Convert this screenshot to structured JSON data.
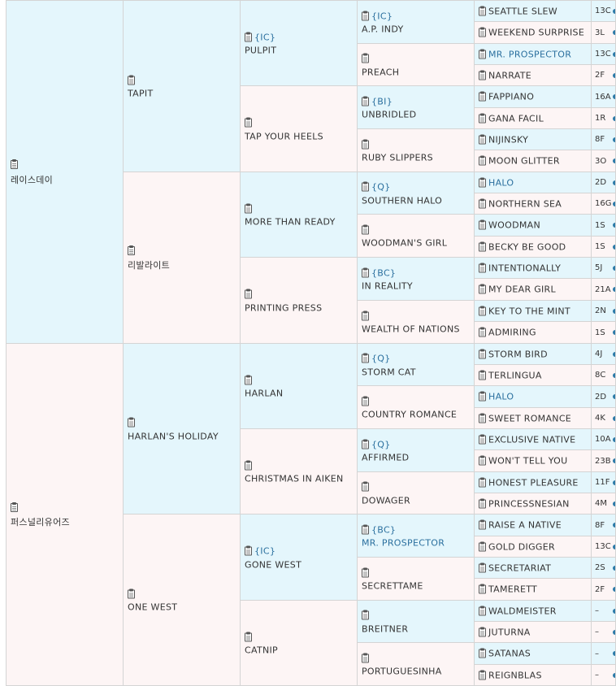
{
  "generation_1": [
    {
      "name": "레이스데이",
      "sex": "male"
    },
    {
      "name": "퍼스널리유어즈",
      "sex": "female"
    }
  ],
  "generation_2": [
    {
      "name": "TAPIT",
      "sex": "male"
    },
    {
      "name": "리발라이트",
      "sex": "female"
    },
    {
      "name": "HARLAN'S HOLIDAY",
      "sex": "male"
    },
    {
      "name": "ONE WEST",
      "sex": "female"
    }
  ],
  "generation_3": [
    {
      "name": "PULPIT",
      "sex": "male",
      "tag": "{IC}"
    },
    {
      "name": "TAP YOUR HEELS",
      "sex": "female",
      "tag": ""
    },
    {
      "name": "MORE THAN READY",
      "sex": "male",
      "tag": ""
    },
    {
      "name": "PRINTING PRESS",
      "sex": "female",
      "tag": ""
    },
    {
      "name": "HARLAN",
      "sex": "male",
      "tag": ""
    },
    {
      "name": "CHRISTMAS IN AIKEN",
      "sex": "female",
      "tag": ""
    },
    {
      "name": "GONE WEST",
      "sex": "male",
      "tag": "{IC}"
    },
    {
      "name": "CATNIP",
      "sex": "female",
      "tag": ""
    }
  ],
  "generation_4": [
    {
      "name": "A.P. INDY",
      "sex": "male",
      "tag": "{IC}",
      "link": false
    },
    {
      "name": "PREACH",
      "sex": "female",
      "tag": "",
      "link": false
    },
    {
      "name": "UNBRIDLED",
      "sex": "male",
      "tag": "{BI}",
      "link": false
    },
    {
      "name": "RUBY SLIPPERS",
      "sex": "female",
      "tag": "",
      "link": false
    },
    {
      "name": "SOUTHERN HALO",
      "sex": "male",
      "tag": "{Q}",
      "link": false
    },
    {
      "name": "WOODMAN'S GIRL",
      "sex": "female",
      "tag": "",
      "link": false
    },
    {
      "name": "IN REALITY",
      "sex": "male",
      "tag": "{BC}",
      "link": false
    },
    {
      "name": "WEALTH OF NATIONS",
      "sex": "female",
      "tag": "",
      "link": false
    },
    {
      "name": "STORM CAT",
      "sex": "male",
      "tag": "{Q}",
      "link": false
    },
    {
      "name": "COUNTRY ROMANCE",
      "sex": "female",
      "tag": "",
      "link": false
    },
    {
      "name": "AFFIRMED",
      "sex": "male",
      "tag": "{Q}",
      "link": false
    },
    {
      "name": "DOWAGER",
      "sex": "female",
      "tag": "",
      "link": false
    },
    {
      "name": "MR. PROSPECTOR",
      "sex": "male",
      "tag": "{BC}",
      "link": true
    },
    {
      "name": "SECRETTAME",
      "sex": "female",
      "tag": "",
      "link": false
    },
    {
      "name": "BREITNER",
      "sex": "male",
      "tag": "",
      "link": false
    },
    {
      "name": "PORTUGUESINHA",
      "sex": "female",
      "tag": "",
      "link": false
    }
  ],
  "generation_5": [
    {
      "name": "SEATTLE SLEW",
      "sex": "male",
      "code": "13C",
      "link": false
    },
    {
      "name": "WEEKEND SURPRISE",
      "sex": "female",
      "code": "3L",
      "link": false
    },
    {
      "name": "MR. PROSPECTOR",
      "sex": "male",
      "code": "13C",
      "link": true
    },
    {
      "name": "NARRATE",
      "sex": "female",
      "code": "2F",
      "link": false
    },
    {
      "name": "FAPPIANO",
      "sex": "male",
      "code": "16A",
      "link": false
    },
    {
      "name": "GANA FACIL",
      "sex": "female",
      "code": "1R",
      "link": false
    },
    {
      "name": "NIJINSKY",
      "sex": "male",
      "code": "8F",
      "link": false
    },
    {
      "name": "MOON GLITTER",
      "sex": "female",
      "code": "3O",
      "link": false
    },
    {
      "name": "HALO",
      "sex": "male",
      "code": "2D",
      "link": true
    },
    {
      "name": "NORTHERN SEA",
      "sex": "female",
      "code": "16G",
      "link": false
    },
    {
      "name": "WOODMAN",
      "sex": "male",
      "code": "1S",
      "link": false
    },
    {
      "name": "BECKY BE GOOD",
      "sex": "female",
      "code": "1S",
      "link": false
    },
    {
      "name": "INTENTIONALLY",
      "sex": "male",
      "code": "5J",
      "link": false
    },
    {
      "name": "MY DEAR GIRL",
      "sex": "female",
      "code": "21A",
      "link": false
    },
    {
      "name": "KEY TO THE MINT",
      "sex": "male",
      "code": "2N",
      "link": false
    },
    {
      "name": "ADMIRING",
      "sex": "female",
      "code": "1S",
      "link": false
    },
    {
      "name": "STORM BIRD",
      "sex": "male",
      "code": "4J",
      "link": false
    },
    {
      "name": "TERLINGUA",
      "sex": "female",
      "code": "8C",
      "link": false
    },
    {
      "name": "HALO",
      "sex": "male",
      "code": "2D",
      "link": true
    },
    {
      "name": "SWEET ROMANCE",
      "sex": "female",
      "code": "4K",
      "link": false
    },
    {
      "name": "EXCLUSIVE NATIVE",
      "sex": "male",
      "code": "10A",
      "link": false
    },
    {
      "name": "WON'T TELL YOU",
      "sex": "female",
      "code": "23B",
      "link": false
    },
    {
      "name": "HONEST PLEASURE",
      "sex": "male",
      "code": "11F",
      "link": false
    },
    {
      "name": "PRINCESSNESIAN",
      "sex": "female",
      "code": "4M",
      "link": false
    },
    {
      "name": "RAISE A NATIVE",
      "sex": "male",
      "code": "8F",
      "link": false
    },
    {
      "name": "GOLD DIGGER",
      "sex": "female",
      "code": "13C",
      "link": false
    },
    {
      "name": "SECRETARIAT",
      "sex": "male",
      "code": "2S",
      "link": false
    },
    {
      "name": "TAMERETT",
      "sex": "female",
      "code": "2F",
      "link": false
    },
    {
      "name": "WALDMEISTER",
      "sex": "male",
      "code": "–",
      "link": false
    },
    {
      "name": "JUTURNA",
      "sex": "female",
      "code": "–",
      "link": false
    },
    {
      "name": "SATANAS",
      "sex": "male",
      "code": "–",
      "link": false
    },
    {
      "name": "REIGNBLAS",
      "sex": "female",
      "code": "–",
      "link": false
    }
  ],
  "colors": {
    "male_bg": "#e4f6fc",
    "female_bg": "#fdf5f5",
    "link": "#2a6f9e",
    "border": "#d4d4d4"
  },
  "icons": {
    "entry_icon": "clipboard-icon",
    "more_dot": "blue-dot-icon"
  }
}
